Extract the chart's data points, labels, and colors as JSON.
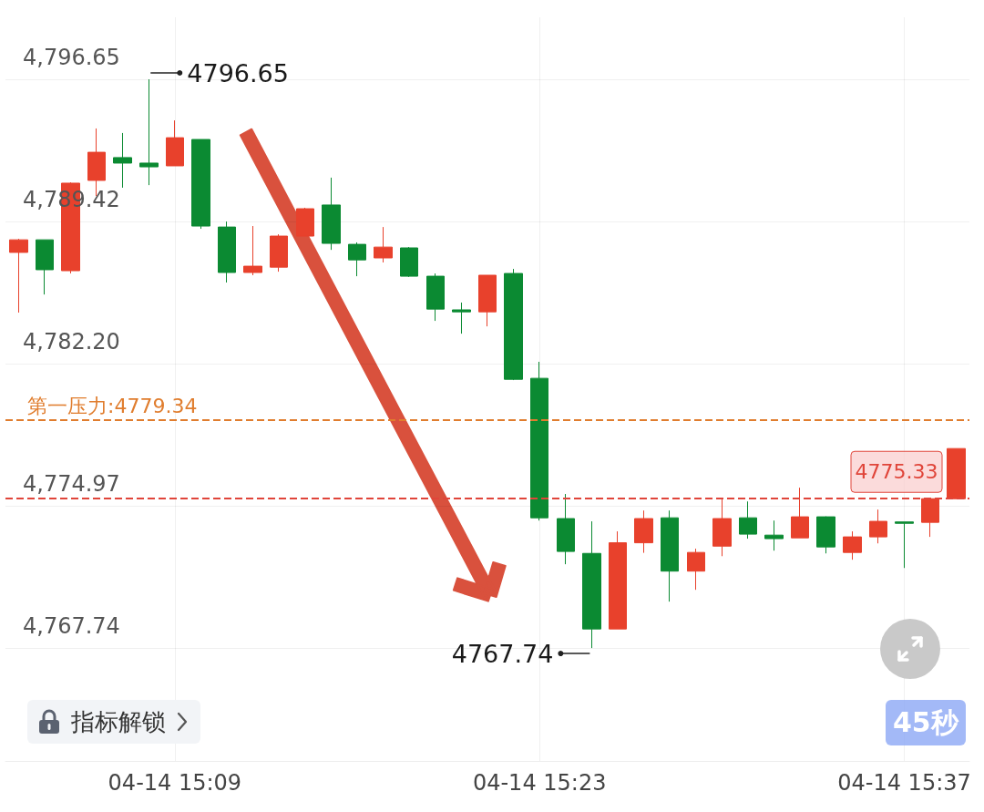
{
  "chart_data": {
    "type": "candlestick",
    "categories": [
      null,
      null,
      null,
      null,
      null,
      null,
      "04-14 15:09",
      null,
      null,
      null,
      null,
      null,
      null,
      null,
      null,
      null,
      null,
      null,
      null,
      null,
      "04-14 15:23",
      null,
      null,
      null,
      null,
      null,
      null,
      null,
      null,
      null,
      null,
      null,
      null,
      null,
      "04-14 15:37",
      null,
      null
    ],
    "ohlc": [
      [
        4787.85,
        4788.54,
        4784.79,
        4788.49
      ],
      [
        4788.49,
        4788.49,
        4785.71,
        4786.97
      ],
      [
        4786.92,
        4791.41,
        4786.78,
        4791.37
      ],
      [
        4791.51,
        4794.15,
        4790.72,
        4792.94
      ],
      [
        4792.67,
        4793.92,
        4791.14,
        4792.39
      ],
      [
        4792.39,
        4796.65,
        4791.27,
        4792.2
      ],
      [
        4792.25,
        4794.56,
        4792.25,
        4793.68
      ],
      [
        4793.59,
        4793.59,
        4789.05,
        4789.19
      ],
      [
        4789.14,
        4789.42,
        4786.32,
        4786.83
      ],
      [
        4786.83,
        4789.19,
        4786.69,
        4787.15
      ],
      [
        4787.1,
        4788.77,
        4786.87,
        4788.68
      ],
      [
        4788.68,
        4790.12,
        4788.68,
        4790.07
      ],
      [
        4790.26,
        4791.65,
        4787.98,
        4788.31
      ],
      [
        4788.26,
        4788.36,
        4786.64,
        4787.47
      ],
      [
        4787.57,
        4789.14,
        4787.34,
        4788.12
      ],
      [
        4788.08,
        4788.12,
        4786.6,
        4786.64
      ],
      [
        4786.64,
        4786.78,
        4784.37,
        4784.97
      ],
      [
        4784.93,
        4785.3,
        4783.72,
        4784.83
      ],
      [
        4784.83,
        4786.69,
        4784.09,
        4786.69
      ],
      [
        4786.78,
        4787.01,
        4781.36,
        4781.4
      ],
      [
        4781.45,
        4782.29,
        4774.22,
        4774.36
      ],
      [
        4774.32,
        4775.57,
        4772.0,
        4772.65
      ],
      [
        4772.55,
        4774.18,
        4767.74,
        4768.71
      ],
      [
        4768.71,
        4773.67,
        4768.71,
        4773.09
      ],
      [
        4773.09,
        4774.73,
        4772.58,
        4774.32
      ],
      [
        4774.36,
        4774.73,
        4770.1,
        4771.65
      ],
      [
        4771.65,
        4772.79,
        4770.7,
        4772.6
      ],
      [
        4772.92,
        4775.3,
        4772.41,
        4774.32
      ],
      [
        4774.36,
        4775.19,
        4773.3,
        4773.53
      ],
      [
        4773.48,
        4774.22,
        4772.69,
        4773.3
      ],
      [
        4773.34,
        4775.89,
        4773.34,
        4774.41
      ],
      [
        4774.41,
        4774.43,
        4772.55,
        4772.88
      ],
      [
        4772.6,
        4773.67,
        4772.23,
        4773.39
      ],
      [
        4773.39,
        4774.78,
        4773.06,
        4774.18
      ],
      [
        4774.15,
        4774.15,
        4771.81,
        4774.08
      ],
      [
        4774.13,
        4775.33,
        4773.39,
        4775.33
      ],
      [
        4775.33,
        4777.88,
        4775.33,
        4777.88
      ]
    ],
    "colors": [
      "#e8412c",
      "#0b8a32",
      "#e8412c",
      "#e8412c",
      "#0b8a32",
      "#0b8a32",
      "#e8412c",
      "#0b8a32",
      "#0b8a32",
      "#e8412c",
      "#e8412c",
      "#e8412c",
      "#0b8a32",
      "#0b8a32",
      "#e8412c",
      "#0b8a32",
      "#0b8a32",
      "#0b8a32",
      "#e8412c",
      "#0b8a32",
      "#0b8a32",
      "#0b8a32",
      "#0b8a32",
      "#e8412c",
      "#e8412c",
      "#0b8a32",
      "#e8412c",
      "#e8412c",
      "#0b8a32",
      "#0b8a32",
      "#e8412c",
      "#0b8a32",
      "#e8412c",
      "#e8412c",
      "#0b8a32",
      "#e8412c",
      "#e8412c"
    ],
    "ylim": [
      4762.0,
      4799.8
    ],
    "yticks": [
      {
        "value": 4767.74,
        "label": "4,767.74"
      },
      {
        "value": 4774.97,
        "label": "4,774.97"
      },
      {
        "value": 4782.2,
        "label": "4,782.20"
      },
      {
        "value": 4789.42,
        "label": "4,789.42"
      },
      {
        "value": 4796.65,
        "label": "4,796.65"
      }
    ],
    "grid": true,
    "ref_lines": [
      {
        "axis": "y",
        "value": 4779.34,
        "label": "第一压力:4779.34",
        "color": "#e07d2e",
        "line_style": "dashed"
      },
      {
        "axis": "y",
        "value": 4775.33,
        "label": "4775.33",
        "color": "#e0453a",
        "line_style": "dashed"
      }
    ],
    "annotations": [
      "4796.65",
      "4767.74",
      "指标解锁",
      "45秒"
    ]
  }
}
